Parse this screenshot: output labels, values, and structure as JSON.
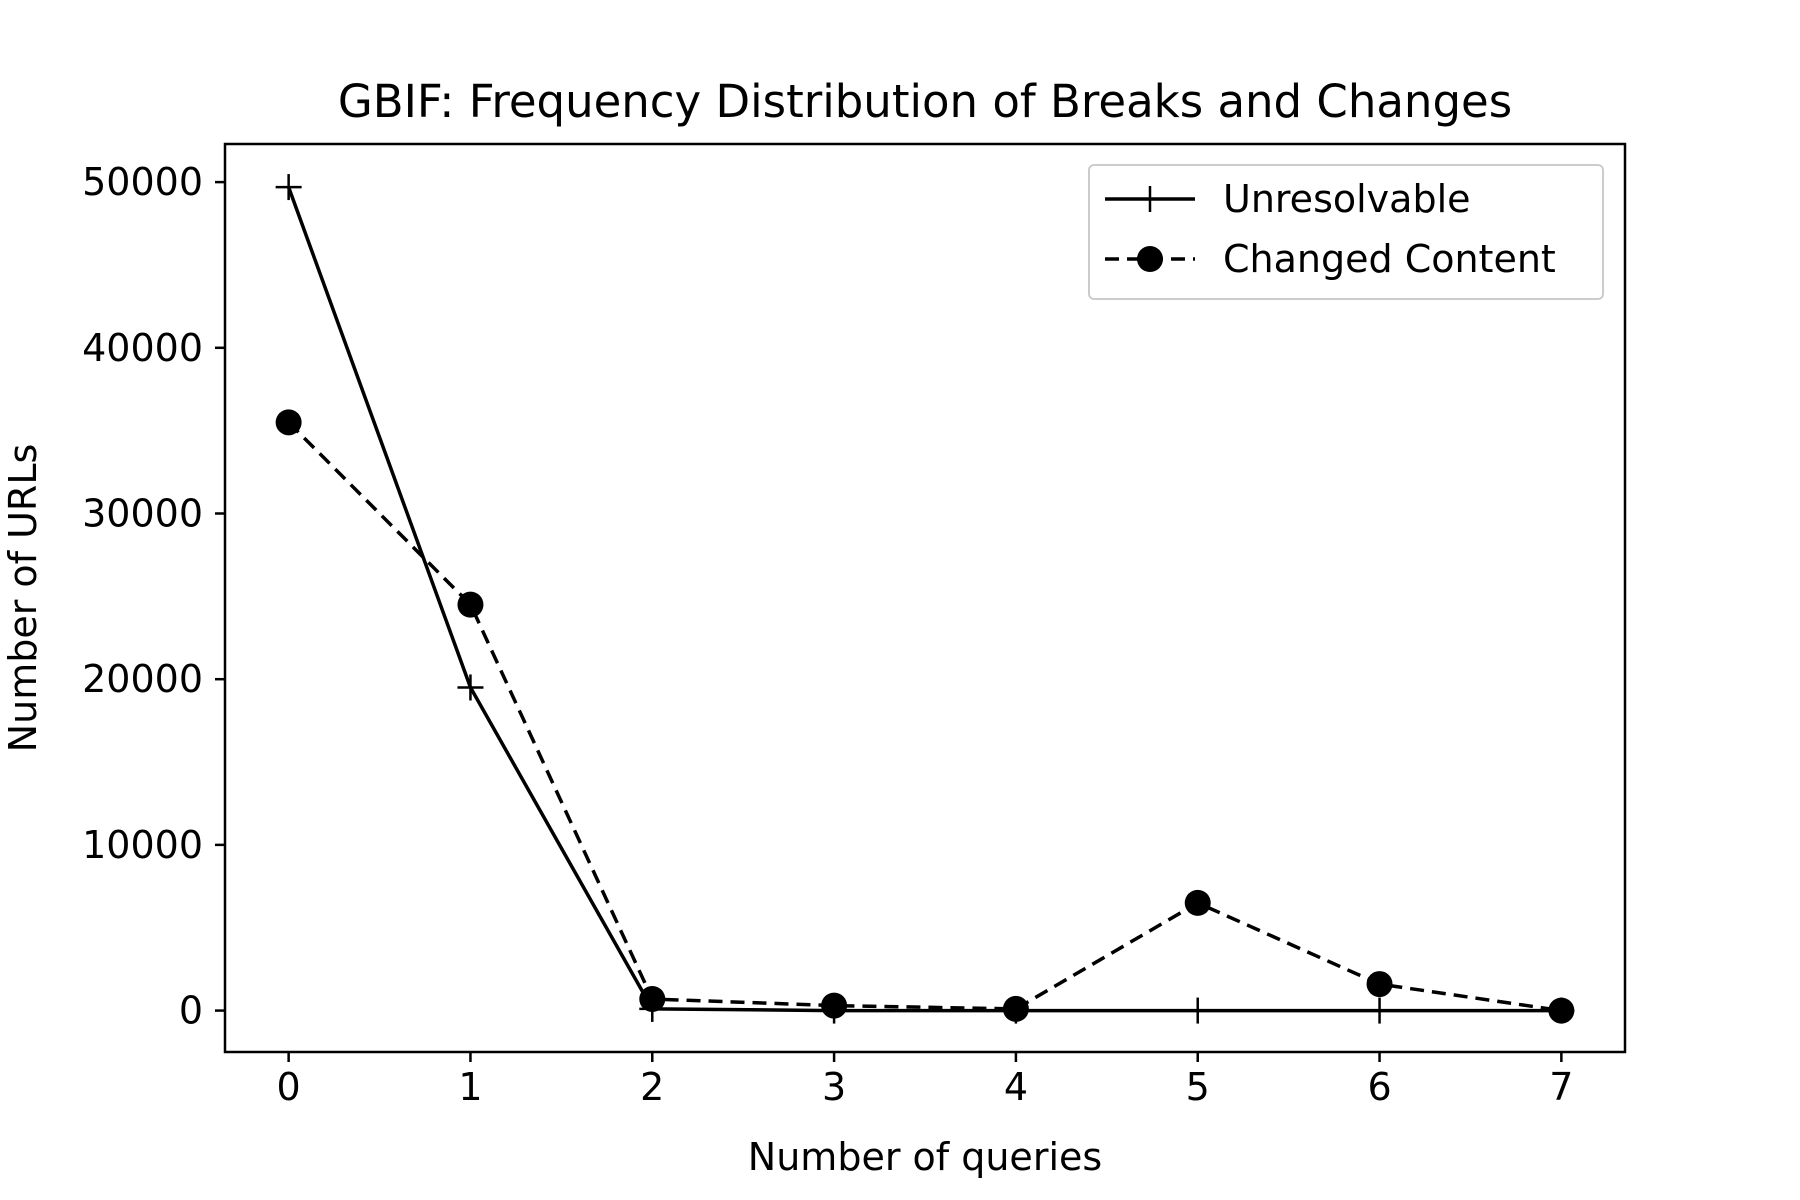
{
  "chart_data": {
    "type": "line",
    "title": "GBIF: Frequency Distribution of Breaks and Changes",
    "xlabel": "Number of queries",
    "ylabel": "Number of URLs",
    "x": [
      0,
      1,
      2,
      3,
      4,
      5,
      6,
      7
    ],
    "xlim": [
      -0.35,
      7.35
    ],
    "ylim": [
      -2500,
      52300
    ],
    "xticks": [
      "0",
      "1",
      "2",
      "3",
      "4",
      "5",
      "6",
      "7"
    ],
    "yticks": [
      "0",
      "10000",
      "20000",
      "30000",
      "40000",
      "50000"
    ],
    "grid": false,
    "legend_position": "top-right",
    "series": [
      {
        "name": "Unresolvable",
        "values": [
          49700,
          19500,
          100,
          0,
          0,
          0,
          0,
          0
        ],
        "line_style": "solid",
        "marker": "plus",
        "color": "#000000"
      },
      {
        "name": "Changed Content",
        "values": [
          35500,
          24500,
          700,
          300,
          100,
          6500,
          1600,
          0
        ],
        "line_style": "dashed",
        "marker": "circle",
        "color": "#000000"
      }
    ]
  }
}
